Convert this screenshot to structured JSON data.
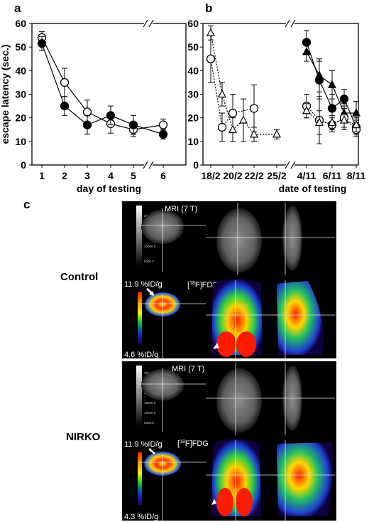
{
  "panels": {
    "a": "a",
    "b": "b",
    "c": "c"
  },
  "chart_data": [
    {
      "type": "line",
      "panel": "a",
      "ylabel": "escape latency (sec.)",
      "xlabel": "day of testing",
      "x": [
        1,
        2,
        3,
        4,
        5,
        6
      ],
      "xtick_labels": [
        "1",
        "2",
        "3",
        "4",
        "5",
        "6"
      ],
      "ylim": [
        0,
        60
      ],
      "yticks": [
        "0",
        "10",
        "20",
        "30",
        "40",
        "50",
        "60"
      ],
      "axis_break": "between 5 and 6",
      "series": [
        {
          "marker": "open-circle",
          "values": [
            54,
            35,
            22.5,
            17.5,
            15,
            17
          ],
          "errors": [
            2.5,
            6,
            5,
            4,
            3,
            2.5
          ]
        },
        {
          "marker": "filled-circle",
          "values": [
            51.5,
            25,
            17,
            21,
            17,
            13
          ],
          "errors": [
            3,
            4,
            4,
            4,
            4,
            2
          ]
        }
      ]
    },
    {
      "type": "line",
      "panel": "b",
      "xlabel": "date of testing",
      "xtick_labels": [
        "18/2",
        "20/2",
        "22/2",
        "25/2",
        "4/11",
        "6/11",
        "8/11"
      ],
      "ylim": [
        0,
        60
      ],
      "yticks": [
        "0",
        "10",
        "20",
        "30",
        "40",
        "50",
        "60"
      ],
      "axis_break": "between 25/2 and 4/11",
      "series": [
        {
          "marker": "open-circle",
          "line": "dotted",
          "group": "early",
          "x": [
            "18/2",
            "19/2",
            "20/2",
            "22/2"
          ],
          "values": [
            45,
            16,
            22,
            24
          ],
          "errors": [
            10,
            6,
            8,
            10
          ]
        },
        {
          "marker": "open-triangle",
          "line": "dotted",
          "group": "early",
          "x": [
            "18/2",
            "19/2",
            "20/2",
            "21/2",
            "22/2",
            "25/2"
          ],
          "values": [
            56,
            30,
            15,
            19,
            13,
            13
          ],
          "errors": [
            3,
            5,
            5,
            9,
            3,
            2
          ]
        },
        {
          "marker": "filled-circle",
          "line": "solid",
          "group": "late",
          "x": [
            "4/11",
            "5/11",
            "6/11",
            "7/11",
            "8/11"
          ],
          "values": [
            52,
            36,
            24,
            28,
            16
          ],
          "errors": [
            5,
            8,
            6,
            4,
            3
          ]
        },
        {
          "marker": "filled-triangle",
          "line": "solid",
          "group": "late",
          "x": [
            "4/11",
            "5/11",
            "6/11",
            "7/11",
            "8/11"
          ],
          "values": [
            48,
            38,
            34,
            22,
            22
          ],
          "errors": [
            4,
            7,
            6,
            4,
            5
          ]
        },
        {
          "marker": "open-circle",
          "line": "dotted",
          "group": "late",
          "x": [
            "4/11",
            "5/11",
            "6/11",
            "7/11",
            "8/11"
          ],
          "values": [
            25,
            19,
            17,
            20,
            15
          ],
          "errors": [
            5,
            10,
            3,
            5,
            3
          ]
        },
        {
          "marker": "open-triangle",
          "line": "dotted",
          "group": "late",
          "x": [
            "4/11",
            "5/11",
            "6/11",
            "7/11",
            "8/11"
          ],
          "values": [
            23,
            18,
            18,
            19,
            17
          ],
          "errors": [
            3,
            5,
            3,
            3,
            3
          ]
        }
      ]
    }
  ],
  "figure_c": {
    "rows": [
      {
        "label": "Control",
        "mri_label": "MRI (7 T)",
        "pet_label_prefix": "[",
        "pet_label_sup": "18",
        "pet_label_suffix": "F]FDG",
        "scale_max": "11.9 %ID/g",
        "scale_min": "4.6 %ID/g",
        "mri_scale_ticks": [
          "20000.0",
          "15000.0",
          "10000.0",
          "5000.0"
        ]
      },
      {
        "label": "NIRKO",
        "mri_label": "MRI (7 T)",
        "pet_label_prefix": "[",
        "pet_label_sup": "18",
        "pet_label_suffix": "F]FDG",
        "scale_max": "11.9 %ID/g",
        "scale_min": "4.3 %ID/g",
        "mri_scale_ticks": [
          "30000.0",
          "25000.0",
          "20000.0",
          "15000.0",
          "10000.0",
          "5000.0"
        ]
      }
    ]
  }
}
